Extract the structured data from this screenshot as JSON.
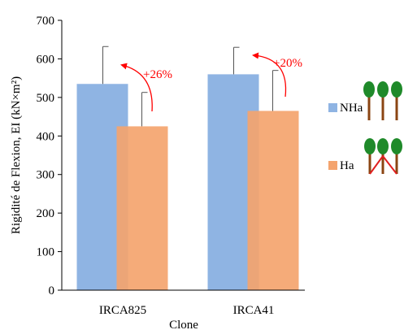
{
  "chart_data": {
    "type": "bar",
    "categories": [
      "IRCA825",
      "IRCA41"
    ],
    "series": [
      {
        "name": "NHa",
        "values": [
          535,
          560
        ],
        "error": [
          97,
          70
        ],
        "color": "#8fb4e3"
      },
      {
        "name": "Ha",
        "values": [
          425,
          465
        ],
        "error": [
          88,
          105
        ],
        "color": "#f4a46e"
      }
    ],
    "annotations": [
      {
        "text": "+26%",
        "category": "IRCA825",
        "color": "#ff0000"
      },
      {
        "text": "+20%",
        "category": "IRCA41",
        "color": "#ff0000"
      }
    ],
    "xlabel": "Clone",
    "ylabel": "Rigidité de Flexion, EI (kN×m²)",
    "ylim": [
      0,
      700
    ],
    "yticks": [
      0,
      100,
      200,
      300,
      400,
      500,
      600,
      700
    ],
    "grid": false,
    "legend_position": "right",
    "legend_icons": [
      "three-upright-trees-icon",
      "three-leaning-trees-icon"
    ]
  }
}
